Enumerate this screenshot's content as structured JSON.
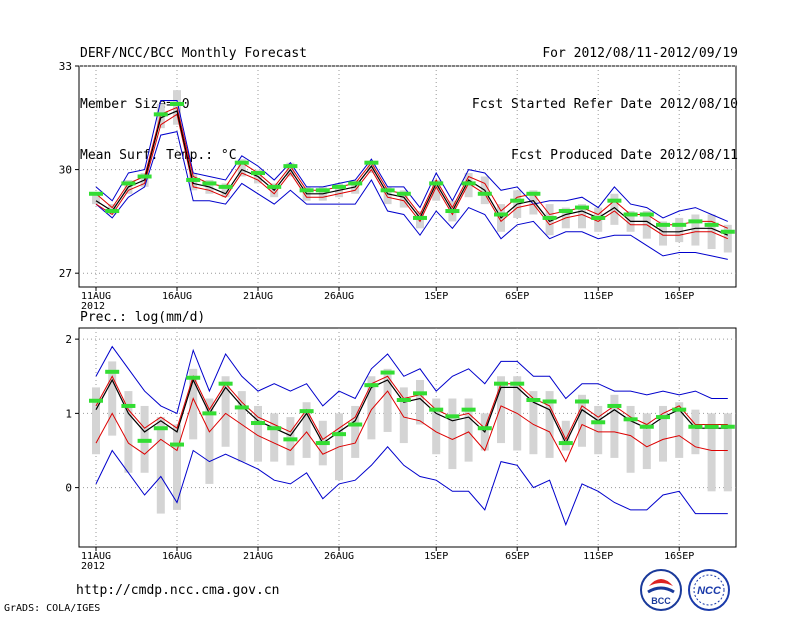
{
  "header": {
    "left": [
      "DERF/NCC/BCC Monthly Forecast",
      "Member Size=40",
      "Mean Surf. Temp.: °C"
    ],
    "right": [
      "For 2012/08/11-2012/09/19",
      "Fcst Started Refer Date 2012/08/10",
      "Fcst Produced Date 2012/08/11"
    ]
  },
  "footer": {
    "url": "http://cmdp.ncc.cma.gov.cn",
    "grads": "GrADS: COLA/IGES"
  },
  "logos": {
    "bcc": "BCC",
    "ncc": "NCC"
  },
  "colors": {
    "ensemble_max": "#0000cc",
    "ensemble_min": "#0000cc",
    "upper_quartile": "#dd0000",
    "lower_quartile": "#dd0000",
    "median": "#000000",
    "spread_bar": "#d4d4d4",
    "marker": "#33dd33"
  },
  "chart_data": [
    {
      "type": "line",
      "title": "Mean Surf. Temp.: °C",
      "x_tick_labels": [
        "11AUG",
        "16AUG",
        "21AUG",
        "26AUG",
        "1SEP",
        "6SEP",
        "11SEP",
        "16SEP"
      ],
      "x_tick_days": [
        1,
        6,
        11,
        16,
        22,
        27,
        32,
        37
      ],
      "year_label": "2012",
      "ylim": [
        26.6,
        33
      ],
      "y_ticks": [
        27,
        30,
        33
      ],
      "days": [
        1,
        2,
        3,
        4,
        5,
        6,
        7,
        8,
        9,
        10,
        11,
        12,
        13,
        14,
        15,
        16,
        17,
        18,
        19,
        20,
        21,
        22,
        23,
        24,
        25,
        26,
        27,
        28,
        29,
        30,
        31,
        32,
        33,
        34,
        35,
        36,
        37,
        38,
        39,
        40
      ],
      "series": [
        {
          "name": "max",
          "values": [
            29.5,
            29.1,
            29.9,
            30.0,
            32.0,
            32.0,
            29.9,
            29.8,
            29.7,
            30.4,
            30.1,
            29.7,
            30.2,
            29.5,
            29.5,
            29.6,
            29.7,
            30.3,
            29.5,
            29.5,
            28.9,
            29.9,
            29.1,
            30.0,
            29.9,
            29.4,
            29.5,
            29.0,
            29.1,
            29.1,
            29.2,
            28.9,
            29.5,
            29.0,
            28.9,
            28.6,
            28.8,
            28.9,
            28.7,
            28.5
          ]
        },
        {
          "name": "upper",
          "values": [
            29.3,
            28.9,
            29.6,
            29.8,
            31.6,
            31.8,
            29.8,
            29.6,
            29.5,
            30.2,
            29.9,
            29.5,
            30.1,
            29.4,
            29.4,
            29.5,
            29.6,
            30.2,
            29.4,
            29.3,
            28.7,
            29.7,
            28.9,
            29.8,
            29.6,
            28.8,
            29.2,
            29.3,
            28.7,
            28.8,
            28.9,
            28.7,
            29.1,
            28.7,
            28.7,
            28.4,
            28.4,
            28.5,
            28.5,
            28.3
          ]
        },
        {
          "name": "median",
          "values": [
            29.1,
            28.8,
            29.5,
            29.7,
            31.5,
            31.7,
            29.6,
            29.5,
            29.3,
            30.0,
            29.8,
            29.4,
            30.0,
            29.3,
            29.3,
            29.4,
            29.5,
            30.1,
            29.3,
            29.2,
            28.6,
            29.6,
            28.8,
            29.7,
            29.4,
            28.6,
            29.0,
            29.1,
            28.5,
            28.7,
            28.8,
            28.6,
            28.9,
            28.5,
            28.5,
            28.2,
            28.2,
            28.3,
            28.3,
            28.1
          ]
        },
        {
          "name": "lower",
          "values": [
            29.0,
            28.7,
            29.4,
            29.6,
            31.3,
            31.6,
            29.5,
            29.4,
            29.2,
            29.9,
            29.7,
            29.3,
            29.9,
            29.2,
            29.2,
            29.3,
            29.4,
            30.0,
            29.2,
            29.1,
            28.5,
            29.5,
            28.7,
            29.6,
            29.3,
            28.5,
            28.9,
            29.0,
            28.4,
            28.6,
            28.7,
            28.5,
            28.8,
            28.4,
            28.4,
            28.1,
            28.1,
            28.2,
            28.2,
            28.0
          ]
        },
        {
          "name": "min",
          "values": [
            29.0,
            28.6,
            29.2,
            29.5,
            31.0,
            31.1,
            29.1,
            29.1,
            29.0,
            29.6,
            29.3,
            29.0,
            29.4,
            29.0,
            29.0,
            29.0,
            29.0,
            29.7,
            28.8,
            28.7,
            28.1,
            28.8,
            28.3,
            28.9,
            28.7,
            28.0,
            28.4,
            28.5,
            28.0,
            28.2,
            28.2,
            28.0,
            28.1,
            28.1,
            27.8,
            27.5,
            27.6,
            27.6,
            27.5,
            27.4
          ]
        },
        {
          "name": "bar_top",
          "values": [
            29.3,
            29.0,
            29.7,
            29.9,
            31.9,
            32.3,
            29.9,
            29.7,
            29.6,
            30.3,
            30.0,
            29.6,
            30.2,
            29.5,
            29.5,
            29.6,
            29.7,
            30.2,
            29.5,
            29.4,
            28.8,
            29.7,
            29.1,
            29.9,
            29.8,
            29.0,
            29.4,
            29.4,
            29.0,
            28.9,
            29.0,
            28.9,
            29.3,
            28.8,
            28.8,
            28.5,
            28.6,
            28.7,
            28.7,
            28.4
          ]
        },
        {
          "name": "bar_bottom",
          "values": [
            29.0,
            28.7,
            29.3,
            29.5,
            31.2,
            31.3,
            29.4,
            29.3,
            29.2,
            29.8,
            29.6,
            29.2,
            29.8,
            29.1,
            29.1,
            29.2,
            29.3,
            29.9,
            29.0,
            28.9,
            28.3,
            29.1,
            28.5,
            29.2,
            29.0,
            28.2,
            28.6,
            28.7,
            28.1,
            28.3,
            28.3,
            28.2,
            28.4,
            28.2,
            28.0,
            27.8,
            27.9,
            27.8,
            27.7,
            27.6
          ]
        },
        {
          "name": "marker",
          "values": [
            29.3,
            28.8,
            29.6,
            29.8,
            31.6,
            31.9,
            29.7,
            29.6,
            29.5,
            30.2,
            29.9,
            29.5,
            30.1,
            29.4,
            29.4,
            29.5,
            29.6,
            30.2,
            29.4,
            29.3,
            28.6,
            29.6,
            28.8,
            29.6,
            29.3,
            28.7,
            29.1,
            29.3,
            28.6,
            28.8,
            28.9,
            28.6,
            29.1,
            28.7,
            28.7,
            28.4,
            28.4,
            28.5,
            28.4,
            28.2
          ]
        }
      ]
    },
    {
      "type": "line",
      "title": "Prec.: log(mm/d)",
      "x_tick_labels": [
        "11AUG",
        "16AUG",
        "21AUG",
        "26AUG",
        "1SEP",
        "6SEP",
        "11SEP",
        "16SEP"
      ],
      "x_tick_days": [
        1,
        6,
        11,
        16,
        22,
        27,
        32,
        37
      ],
      "year_label": "2012",
      "ylim": [
        -0.8,
        2.15
      ],
      "y_ticks": [
        0,
        1,
        2
      ],
      "days": [
        1,
        2,
        3,
        4,
        5,
        6,
        7,
        8,
        9,
        10,
        11,
        12,
        13,
        14,
        15,
        16,
        17,
        18,
        19,
        20,
        21,
        22,
        23,
        24,
        25,
        26,
        27,
        28,
        29,
        30,
        31,
        32,
        33,
        34,
        35,
        36,
        37,
        38,
        39,
        40
      ],
      "series": [
        {
          "name": "max",
          "values": [
            1.5,
            1.9,
            1.6,
            1.3,
            1.1,
            1.0,
            1.85,
            1.3,
            1.8,
            1.5,
            1.3,
            1.4,
            1.3,
            1.4,
            1.1,
            1.3,
            1.2,
            1.6,
            1.8,
            1.5,
            1.6,
            1.3,
            1.5,
            1.6,
            1.4,
            1.7,
            1.7,
            1.5,
            1.5,
            1.2,
            1.4,
            1.4,
            1.3,
            1.3,
            1.25,
            1.3,
            1.25,
            1.3,
            1.2,
            1.2
          ]
        },
        {
          "name": "upper",
          "values": [
            1.1,
            1.5,
            1.05,
            0.8,
            0.95,
            0.8,
            1.5,
            1.05,
            1.4,
            1.15,
            0.95,
            0.85,
            0.75,
            1.05,
            0.65,
            0.8,
            0.95,
            1.4,
            1.5,
            1.2,
            1.25,
            1.05,
            0.95,
            1.0,
            0.8,
            1.4,
            1.4,
            1.2,
            1.1,
            0.65,
            1.1,
            0.95,
            1.1,
            0.95,
            0.85,
            1.0,
            1.1,
            0.85,
            0.85,
            0.85
          ]
        },
        {
          "name": "median",
          "values": [
            1.05,
            1.45,
            1.0,
            0.75,
            0.9,
            0.75,
            1.45,
            1.0,
            1.35,
            1.1,
            0.9,
            0.8,
            0.7,
            1.0,
            0.6,
            0.75,
            0.9,
            1.35,
            1.45,
            1.15,
            1.2,
            1.0,
            0.9,
            0.95,
            0.75,
            1.35,
            1.35,
            1.15,
            1.05,
            0.6,
            1.05,
            0.9,
            1.05,
            0.9,
            0.8,
            0.95,
            1.05,
            0.8,
            0.8,
            0.8
          ]
        },
        {
          "name": "lower",
          "values": [
            0.6,
            1.0,
            0.6,
            0.45,
            0.65,
            0.5,
            1.2,
            0.75,
            1.0,
            0.85,
            0.7,
            0.6,
            0.5,
            0.75,
            0.45,
            0.55,
            0.6,
            1.05,
            1.3,
            0.95,
            0.9,
            0.75,
            0.65,
            0.75,
            0.5,
            1.1,
            1.0,
            0.85,
            0.75,
            0.35,
            0.85,
            0.75,
            0.75,
            0.7,
            0.55,
            0.65,
            0.7,
            0.55,
            0.5,
            0.5
          ]
        },
        {
          "name": "min",
          "values": [
            0.05,
            0.5,
            0.2,
            -0.1,
            0.15,
            -0.2,
            0.5,
            0.35,
            0.45,
            0.35,
            0.25,
            0.1,
            0.05,
            0.2,
            -0.15,
            0.05,
            0.1,
            0.3,
            0.55,
            0.3,
            0.15,
            0.1,
            -0.05,
            -0.05,
            -0.3,
            0.35,
            0.3,
            0.0,
            0.1,
            -0.5,
            0.05,
            -0.05,
            -0.2,
            -0.3,
            -0.3,
            -0.1,
            -0.05,
            -0.35,
            -0.35,
            -0.35
          ]
        },
        {
          "name": "bar_top",
          "values": [
            1.35,
            1.7,
            1.3,
            1.1,
            0.95,
            0.85,
            1.6,
            1.2,
            1.5,
            1.3,
            1.1,
            1.0,
            0.95,
            1.15,
            0.9,
            1.0,
            1.1,
            1.5,
            1.6,
            1.35,
            1.45,
            1.2,
            1.2,
            1.2,
            1.0,
            1.5,
            1.5,
            1.3,
            1.3,
            0.9,
            1.25,
            1.1,
            1.25,
            1.1,
            1.0,
            1.1,
            1.15,
            1.05,
            1.0,
            1.0
          ]
        },
        {
          "name": "bar_bottom",
          "values": [
            0.45,
            0.7,
            0.2,
            0.2,
            -0.35,
            -0.3,
            0.65,
            0.05,
            0.55,
            0.35,
            0.35,
            0.35,
            0.3,
            0.4,
            0.3,
            0.1,
            0.4,
            0.65,
            0.75,
            0.6,
            0.85,
            0.45,
            0.25,
            0.35,
            0.5,
            0.6,
            0.5,
            0.45,
            0.4,
            0.5,
            0.55,
            0.45,
            0.4,
            0.2,
            0.25,
            0.35,
            0.4,
            0.45,
            -0.05,
            -0.05
          ]
        },
        {
          "name": "marker",
          "values": [
            1.17,
            1.56,
            1.1,
            0.63,
            0.8,
            0.58,
            1.48,
            1.0,
            1.4,
            1.08,
            0.87,
            0.8,
            0.65,
            1.03,
            0.6,
            0.72,
            0.85,
            1.38,
            1.55,
            1.18,
            1.27,
            1.05,
            0.96,
            1.05,
            0.8,
            1.4,
            1.4,
            1.18,
            1.16,
            0.6,
            1.16,
            0.88,
            1.1,
            0.92,
            0.82,
            0.95,
            1.05,
            0.82,
            0.82,
            0.82
          ]
        }
      ]
    }
  ]
}
